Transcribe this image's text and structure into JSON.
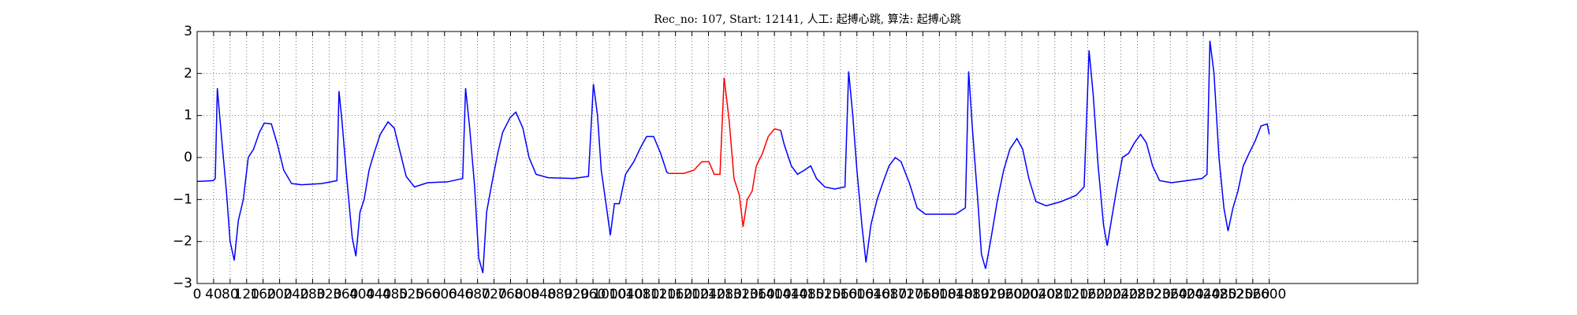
{
  "chart_data": {
    "type": "line",
    "title": "Rec_no: 107, Start: 12141, 人工: 起搏心跳, 算法: 起搏心跳",
    "xlim": [
      0,
      2960
    ],
    "ylim": [
      -3,
      3
    ],
    "xticks": [
      0,
      40,
      80,
      120,
      160,
      200,
      240,
      280,
      320,
      360,
      400,
      440,
      480,
      520,
      560,
      600,
      640,
      680,
      720,
      760,
      800,
      840,
      880,
      920,
      960,
      1000,
      1040,
      1080,
      1120,
      1160,
      1200,
      1240,
      1280,
      1320,
      1360,
      1400,
      1440,
      1480,
      1520,
      1560,
      1600,
      1640,
      1680,
      1720,
      1760,
      1800,
      1840,
      1880,
      1920,
      1960,
      2000,
      2040,
      2080,
      2120,
      2160,
      2200,
      2240,
      2280,
      2320,
      2360,
      2400,
      2440,
      2480,
      2520,
      2560,
      2600
    ],
    "yticks": [
      {
        "value": -3,
        "label": "−3"
      },
      {
        "value": -2,
        "label": "−2"
      },
      {
        "value": -1,
        "label": "−1"
      },
      0,
      1,
      2,
      3
    ],
    "grid": true,
    "series": [
      {
        "color": "#0000ff",
        "x": [
          0,
          39,
          44,
          49,
          59,
          71,
          80,
          90,
          100,
          112,
          124,
          137,
          151,
          163,
          180,
          195,
          210,
          229,
          254,
          302,
          339,
          344,
          351,
          363,
          376,
          385,
          395,
          405,
          417,
          429,
          444,
          463,
          478,
          493,
          507,
          527,
          559,
          607,
          644,
          651,
          661,
          673,
          683,
          693,
          702,
          717,
          729,
          741,
          759,
          773,
          790,
          805,
          822,
          851,
          912,
          949,
          961,
          971,
          980,
          993,
          1002,
          1012,
          1024,
          1039,
          1059,
          1076,
          1090,
          1107,
          1124,
          1139,
          1144,
          1280,
          1415,
          1424,
          1441,
          1456,
          1473,
          1488,
          1502,
          1522,
          1546,
          1571,
          1580,
          1590,
          1600,
          1612,
          1622,
          1634,
          1649,
          1663,
          1678,
          1693,
          1707,
          1727,
          1746,
          1766,
          1802,
          1839,
          1863,
          1871,
          1880,
          1893,
          1902,
          1912,
          1924,
          1941,
          1956,
          1971,
          1988,
          2002,
          2017,
          2034,
          2059,
          2095,
          2132,
          2151,
          2163,
          2173,
          2185,
          2198,
          2207,
          2217,
          2229,
          2244,
          2259,
          2273,
          2288,
          2302,
          2317,
          2334,
          2363,
          2400,
          2437,
          2449,
          2456,
          2466,
          2478,
          2490,
          2500,
          2512,
          2524,
          2537,
          2551,
          2566,
          2580,
          2595,
          2600
        ],
        "values": [
          -0.57,
          -0.55,
          -0.5,
          1.65,
          0.5,
          -0.8,
          -2.0,
          -2.45,
          -1.5,
          -1.0,
          0.0,
          0.2,
          0.6,
          0.82,
          0.8,
          0.3,
          -0.3,
          -0.62,
          -0.65,
          -0.62,
          -0.55,
          1.58,
          0.9,
          -0.5,
          -1.9,
          -2.35,
          -1.3,
          -1.0,
          -0.3,
          0.1,
          0.55,
          0.85,
          0.7,
          0.1,
          -0.45,
          -0.7,
          -0.6,
          -0.58,
          -0.5,
          1.65,
          0.7,
          -0.7,
          -2.4,
          -2.75,
          -1.3,
          -0.5,
          0.1,
          0.6,
          0.95,
          1.08,
          0.7,
          0.0,
          -0.4,
          -0.48,
          -0.5,
          -0.45,
          1.75,
          1.0,
          -0.3,
          -1.2,
          -1.85,
          -1.1,
          -1.1,
          -0.4,
          -0.1,
          0.25,
          0.5,
          0.5,
          0.1,
          -0.35,
          -0.38,
          null,
          0.65,
          0.3,
          -0.2,
          -0.4,
          -0.3,
          -0.2,
          -0.5,
          -0.7,
          -0.75,
          -0.7,
          2.05,
          1.0,
          -0.3,
          -1.6,
          -2.5,
          -1.6,
          -1.0,
          -0.6,
          -0.2,
          0.0,
          -0.1,
          -0.6,
          -1.2,
          -1.35,
          -1.35,
          -1.35,
          -1.2,
          2.05,
          0.7,
          -1.0,
          -2.3,
          -2.65,
          -2.0,
          -1.0,
          -0.3,
          0.2,
          0.45,
          0.2,
          -0.5,
          -1.05,
          -1.15,
          -1.05,
          -0.9,
          -0.7,
          2.55,
          1.5,
          -0.2,
          -1.6,
          -2.1,
          -1.5,
          -0.8,
          0.0,
          0.1,
          0.35,
          0.55,
          0.35,
          -0.2,
          -0.55,
          -0.6,
          -0.55,
          -0.5,
          -0.4,
          2.78,
          2.0,
          0.0,
          -1.2,
          -1.75,
          -1.2,
          -0.8,
          -0.2,
          0.1,
          0.4,
          0.75,
          0.8,
          0.55
        ]
      },
      {
        "color": "#ff0000",
        "x": [
          1144,
          1180,
          1205,
          1224,
          1241,
          1254,
          1268,
          1278,
          1290,
          1302,
          1315,
          1324,
          1334,
          1346,
          1356,
          1371,
          1385,
          1400,
          1415
        ],
        "values": [
          -0.38,
          -0.38,
          -0.3,
          -0.1,
          -0.1,
          -0.4,
          -0.4,
          1.9,
          0.9,
          -0.5,
          -0.9,
          -1.65,
          -1.0,
          -0.8,
          -0.2,
          0.1,
          0.5,
          0.68,
          0.65
        ]
      }
    ]
  }
}
